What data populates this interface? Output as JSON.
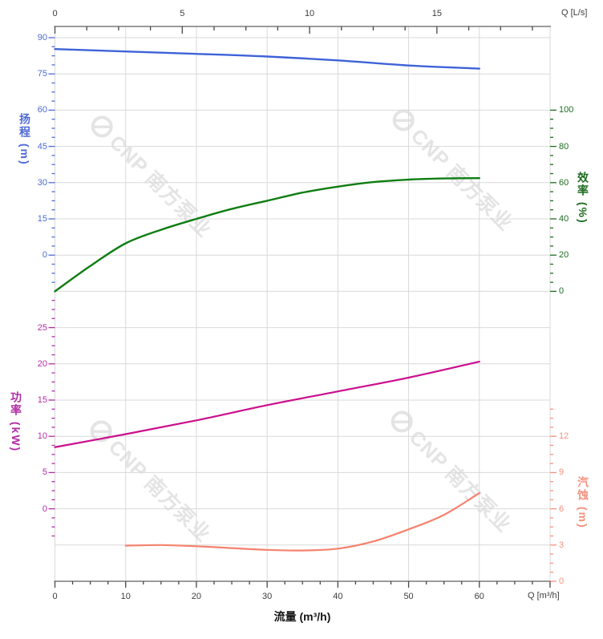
{
  "watermark": {
    "text": "CNP 南方泵业"
  },
  "axes_titles": {
    "head": "扬程 (m)",
    "efficiency": "效率 (%)",
    "power": "功率 (kW)",
    "npsh": "汽蚀 (m)"
  },
  "top_axis": {
    "label": "Q [L/s]"
  },
  "bottom_axis": {
    "label": "Q [m³/h]",
    "title": "流量 (m³/h)"
  },
  "chart_data": {
    "type": "line",
    "title": "",
    "x_bottom": {
      "unit": "m³/h",
      "range": [
        0,
        70
      ],
      "ticks": [
        0,
        10,
        20,
        30,
        40,
        50,
        60
      ],
      "minor_step": 2.5,
      "label": "Q [m³/h]",
      "axis_title": "流量 (m³/h)"
    },
    "x_top": {
      "unit": "L/s",
      "range": [
        0,
        19.44
      ],
      "ticks": [
        0,
        5,
        10,
        15
      ],
      "minor_step": 1.25,
      "label": "Q [L/s]"
    },
    "grid": true,
    "y_axes": {
      "head": {
        "title": "扬程 (m)",
        "side": "left",
        "range": [
          0,
          90
        ],
        "ticks": [
          90,
          75,
          60,
          45,
          30,
          15,
          0
        ],
        "minor_step": 3.75,
        "label_color": "#4d6bd4",
        "tick_color": "#4d6bd4"
      },
      "eff": {
        "title": "效率 (%)",
        "side": "right",
        "range": [
          0,
          100
        ],
        "ticks": [
          100,
          80,
          60,
          40,
          20,
          0
        ],
        "minor_step": 5,
        "label_color": "#1f6d22",
        "tick_color": "#1f6d22"
      },
      "power": {
        "title": "功率 (kW)",
        "side": "left",
        "range": [
          0,
          25
        ],
        "ticks": [
          25,
          20,
          15,
          10,
          5,
          0
        ],
        "minor_step": 1.25,
        "label_color": "#b12da4",
        "tick_color": "#b12da4"
      },
      "npsh": {
        "title": "汽蚀 (m)",
        "side": "right",
        "range": [
          0,
          12
        ],
        "ticks": [
          12,
          9,
          6,
          3,
          0
        ],
        "minor_step": 0.75,
        "label_color": "#f5917f",
        "tick_color": "#f5917f"
      }
    },
    "series": [
      {
        "name": "head",
        "axis": "head",
        "color": "#3e63d8",
        "width": 2.4,
        "points": [
          [
            0,
            85.3
          ],
          [
            10,
            84.3
          ],
          [
            20,
            83.3
          ],
          [
            30,
            82.2
          ],
          [
            40,
            80.6
          ],
          [
            50,
            78.5
          ],
          [
            60,
            77.2
          ]
        ]
      },
      {
        "name": "efficiency",
        "axis": "eff",
        "color": "#0e7d12",
        "width": 2.4,
        "points": [
          [
            0,
            0
          ],
          [
            5,
            14
          ],
          [
            10,
            26.5
          ],
          [
            15,
            34
          ],
          [
            20,
            40
          ],
          [
            25,
            45.5
          ],
          [
            30,
            50
          ],
          [
            35,
            54.5
          ],
          [
            40,
            57.8
          ],
          [
            45,
            60.3
          ],
          [
            50,
            61.7
          ],
          [
            55,
            62.3
          ],
          [
            60,
            62.5
          ]
        ]
      },
      {
        "name": "power",
        "axis": "power",
        "color": "#cb0f8d",
        "width": 2.2,
        "points": [
          [
            0,
            8.5
          ],
          [
            10,
            10.3
          ],
          [
            20,
            12.2
          ],
          [
            30,
            14.3
          ],
          [
            40,
            16.2
          ],
          [
            50,
            18.1
          ],
          [
            60,
            20.3
          ]
        ]
      },
      {
        "name": "npsh",
        "axis": "npsh",
        "color": "#f5826e",
        "width": 2.2,
        "points": [
          [
            10,
            2.95
          ],
          [
            15,
            3.0
          ],
          [
            20,
            2.9
          ],
          [
            25,
            2.75
          ],
          [
            30,
            2.6
          ],
          [
            35,
            2.55
          ],
          [
            40,
            2.7
          ],
          [
            45,
            3.3
          ],
          [
            50,
            4.3
          ],
          [
            55,
            5.5
          ],
          [
            60,
            7.3
          ]
        ]
      }
    ],
    "colors": {
      "grid": "#d9d9d9",
      "axis_line": "#9b9b9b",
      "xy_tick": "#474747",
      "watermark": "#e4e4e4"
    }
  }
}
